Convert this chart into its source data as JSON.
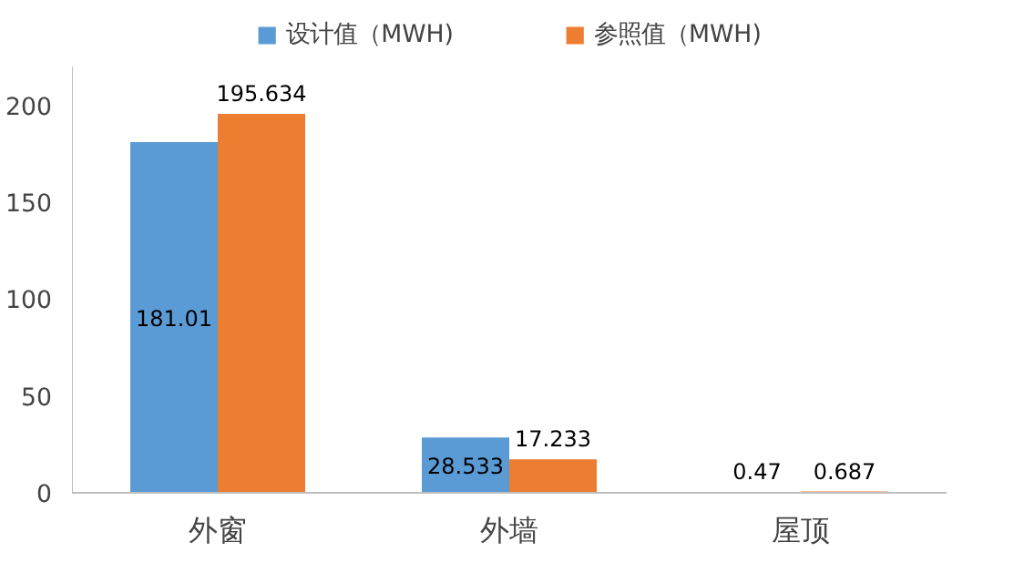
{
  "chart_data": {
    "type": "bar",
    "categories": [
      "外窗",
      "外墙",
      "屋顶"
    ],
    "series": [
      {
        "name": "设计值（MWH)",
        "color": "#5b9bd5",
        "values": [
          181.01,
          28.533,
          0.47
        ]
      },
      {
        "name": "参照值（MWH)",
        "color": "#ed7d31",
        "values": [
          195.634,
          17.233,
          0.687
        ]
      }
    ],
    "ylim": [
      0,
      220
    ],
    "yticks": [
      0,
      50,
      100,
      150,
      200
    ],
    "grid": false,
    "legend": "top",
    "data_labels": true
  }
}
